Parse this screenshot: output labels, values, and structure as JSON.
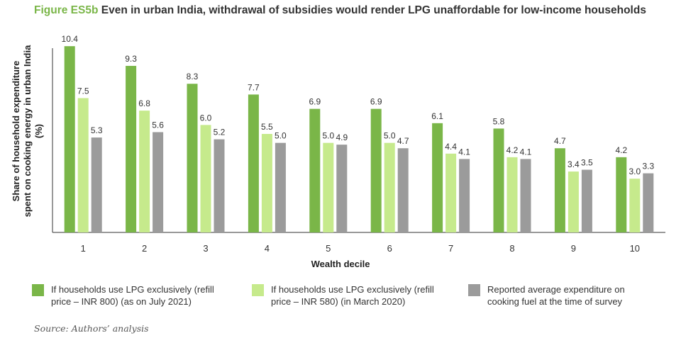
{
  "title": {
    "figure_label": "Figure ES5b",
    "text": "Even in urban India, withdrawal of subsidies would render LPG unaffordable for low-income households"
  },
  "colors": {
    "series1": "#7ab648",
    "series2": "#c6ea8c",
    "series3": "#9b9b9b",
    "axis": "#333333",
    "title_accent": "#7ab648"
  },
  "chart_data": {
    "type": "bar",
    "xlabel": "Wealth decile",
    "ylabel_lines": [
      "Share of household expenditure",
      "spent on cooking energy in urban India",
      "(%)"
    ],
    "categories": [
      "1",
      "2",
      "3",
      "4",
      "5",
      "6",
      "7",
      "8",
      "9",
      "10"
    ],
    "ylim": [
      0,
      11
    ],
    "grid": false,
    "legend_position": "bottom",
    "series": [
      {
        "name": "If households use LPG exclusively (refill price – INR 800) (as on July 2021)",
        "legend_lines": "If households use LPG exclusively (refill\nprice – INR 800) (as on July 2021)",
        "values": [
          10.4,
          9.3,
          8.3,
          7.7,
          6.9,
          6.9,
          6.1,
          5.8,
          4.7,
          4.2
        ],
        "labels": [
          "10.4",
          "9.3",
          "8.3",
          "7.7",
          "6.9",
          "6.9",
          "6.1",
          "5.8",
          "4.7",
          "4.2"
        ]
      },
      {
        "name": "If households use LPG exclusively (refill price – INR 580) (in March 2020)",
        "legend_lines": "If households use LPG exclusively (refill\nprice – INR 580) (in March 2020)",
        "values": [
          7.5,
          6.8,
          6.0,
          5.5,
          5.0,
          5.0,
          4.4,
          4.2,
          3.4,
          3.0
        ],
        "labels": [
          "7.5",
          "6.8",
          "6.0",
          "5.5",
          "5.0",
          "5.0",
          "4.4",
          "4.2",
          "3.4",
          "3.0"
        ]
      },
      {
        "name": "Reported average expenditure on cooking fuel at the time of survey",
        "legend_lines": "Reported average expenditure on\ncooking fuel at the time of survey",
        "values": [
          5.3,
          5.6,
          5.2,
          5.0,
          4.9,
          4.7,
          4.1,
          4.1,
          3.5,
          3.3
        ],
        "labels": [
          "5.3",
          "5.6",
          "5.2",
          "5.0",
          "4.9",
          "4.7",
          "4.1",
          "4.1",
          "3.5",
          "3.3"
        ]
      }
    ]
  },
  "source": "Source: Authors’ analysis"
}
